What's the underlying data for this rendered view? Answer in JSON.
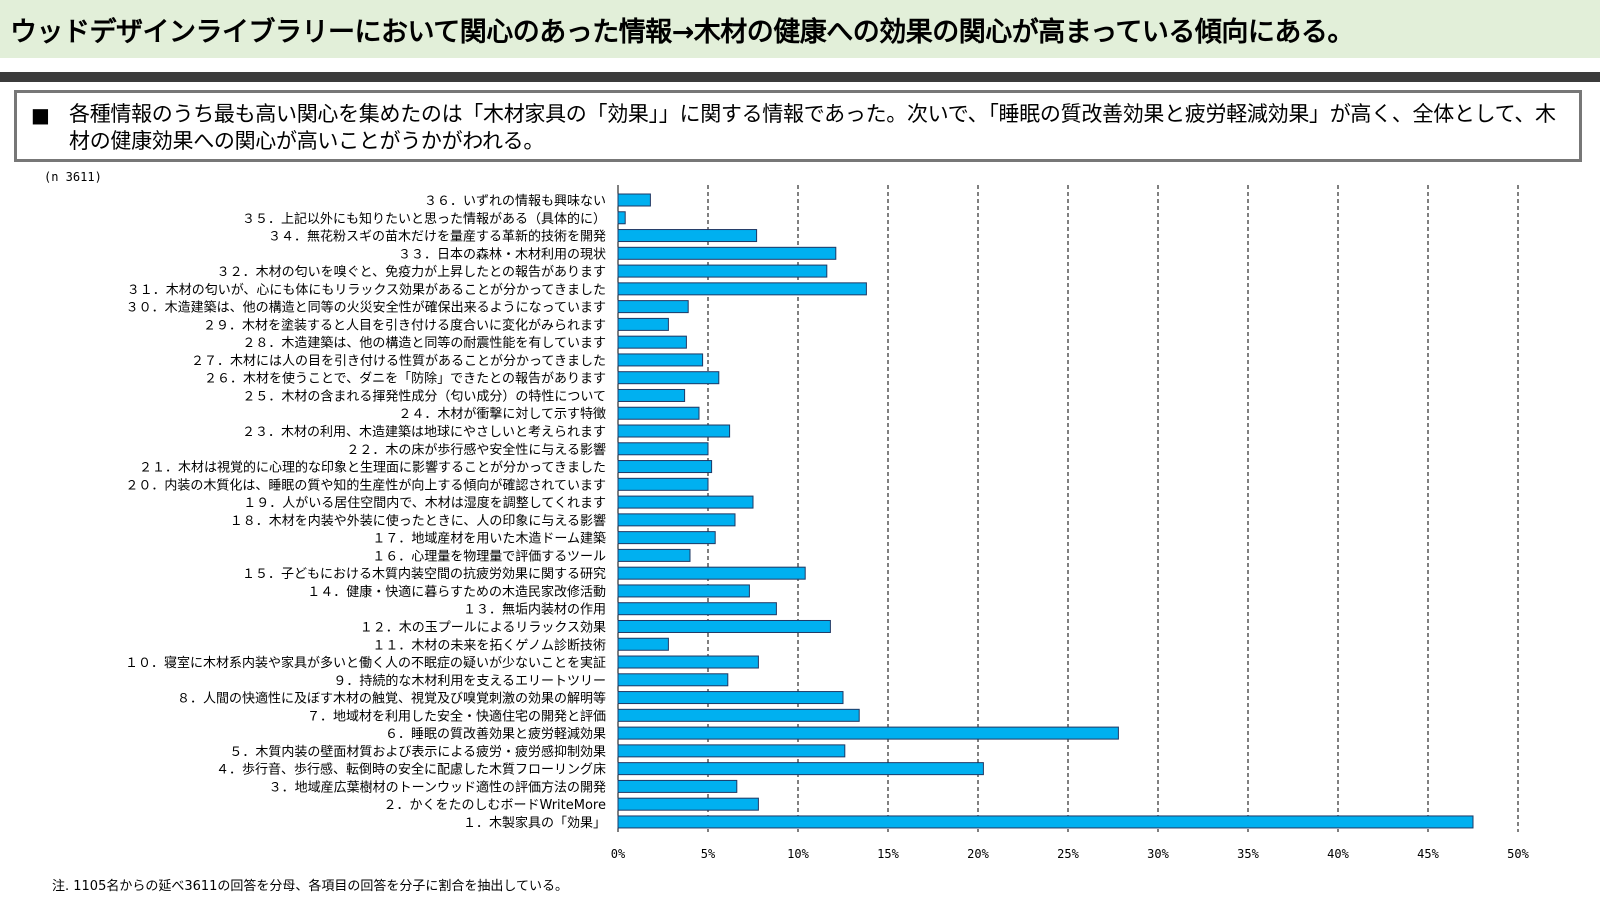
{
  "header": {
    "title": "ウッドデザインライブラリーにおいて関心のあった情報→木材の健康への効果の関心が高まっている傾向にある。"
  },
  "summary": {
    "bullet": "■",
    "text": "各種情報のうち最も高い関心を集めたのは「木材家具の「効果」」に関する情報であった。次いで、「睡眠の質改善効果と疲労軽減効果」が高く、全体として、木材の健康効果への関心が高いことがうかがわれる。"
  },
  "n_label": "(n 3611)",
  "footnote": "注. 1105名からの延べ3611の回答を分母、各項目の回答を分子に割合を抽出している。",
  "colors": {
    "bar": "#00b0f0",
    "bar_border": "#1f3864",
    "grid": "#000000",
    "title_band": "#e2efd9"
  },
  "chart_data": {
    "type": "bar",
    "orientation": "horizontal",
    "categories": [
      "３６．いずれの情報も興味ない",
      "３５．上記以外にも知りたいと思った情報がある（具体的に）",
      "３４．無花粉スギの苗木だけを量産する革新的技術を開発",
      "３３．日本の森林・木材利用の現状",
      "３２．木材の匂いを嗅ぐと、免疫力が上昇したとの報告があります",
      "３１．木材の匂いが、心にも体にもリラックス効果があることが分かってきました",
      "３０．木造建築は、他の構造と同等の火災安全性が確保出来るようになっています",
      "２９．木材を塗装すると人目を引き付ける度合いに変化がみられます",
      "２８．木造建築は、他の構造と同等の耐震性能を有しています",
      "２７．木材には人の目を引き付ける性質があることが分かってきました",
      "２６．木材を使うことで、ダニを「防除」できたとの報告があります",
      "２５．木材の含まれる揮発性成分（匂い成分）の特性について",
      "２４．木材が衝撃に対して示す特徴",
      "２３．木材の利用、木造建築は地球にやさしいと考えられます",
      "２２．木の床が歩行感や安全性に与える影響",
      "２１．木材は視覚的に心理的な印象と生理面に影響することが分かってきました",
      "２０．内装の木質化は、睡眠の質や知的生産性が向上する傾向が確認されています",
      "１９．人がいる居住空間内で、木材は湿度を調整してくれます",
      "１８．木材を内装や外装に使ったときに、人の印象に与える影響",
      "１７．地域産材を用いた木造ドーム建築",
      "１６．心理量を物理量で評価するツール",
      "１５．子どもにおける木質内装空間の抗疲労効果に関する研究",
      "１４．健康・快適に暮らすための木造民家改修活動",
      "１３．無垢内装材の作用",
      "１２．木の玉プールによるリラックス効果",
      "１１．木材の未来を拓くゲノム診断技術",
      "１０．寝室に木材系内装や家具が多いと働く人の不眠症の疑いが少ないことを実証",
      "９．持続的な木材利用を支えるエリートツリー",
      "８．人間の快適性に及ぼす木材の触覚、視覚及び嗅覚刺激の効果の解明等",
      "７．地域材を利用した安全・快適住宅の開発と評価",
      "６．睡眠の質改善効果と疲労軽減効果",
      "５．木質内装の壁面材質および表示による疲労・疲労感抑制効果",
      "４．歩行音、歩行感、転倒時の安全に配慮した木質フローリング床",
      "３．地域産広葉樹材のトーンウッド適性の評価方法の開発",
      "２．かくをたのしむボードWriteMore",
      "１．木製家具の「効果」"
    ],
    "values": [
      1.8,
      0.4,
      7.7,
      12.1,
      11.6,
      13.8,
      3.9,
      2.8,
      3.8,
      4.7,
      5.6,
      3.7,
      4.5,
      6.2,
      5.0,
      5.2,
      5.0,
      7.5,
      6.5,
      5.4,
      4.0,
      10.4,
      7.3,
      8.8,
      11.8,
      2.8,
      7.8,
      6.1,
      12.5,
      13.4,
      27.8,
      12.6,
      20.3,
      6.6,
      7.8,
      47.5
    ],
    "xlim": [
      0,
      50
    ],
    "x_ticks": [
      "0%",
      "5%",
      "10%",
      "15%",
      "20%",
      "25%",
      "30%",
      "35%",
      "40%",
      "45%",
      "50%"
    ],
    "grid": "vertical dashed",
    "legend": "none"
  }
}
